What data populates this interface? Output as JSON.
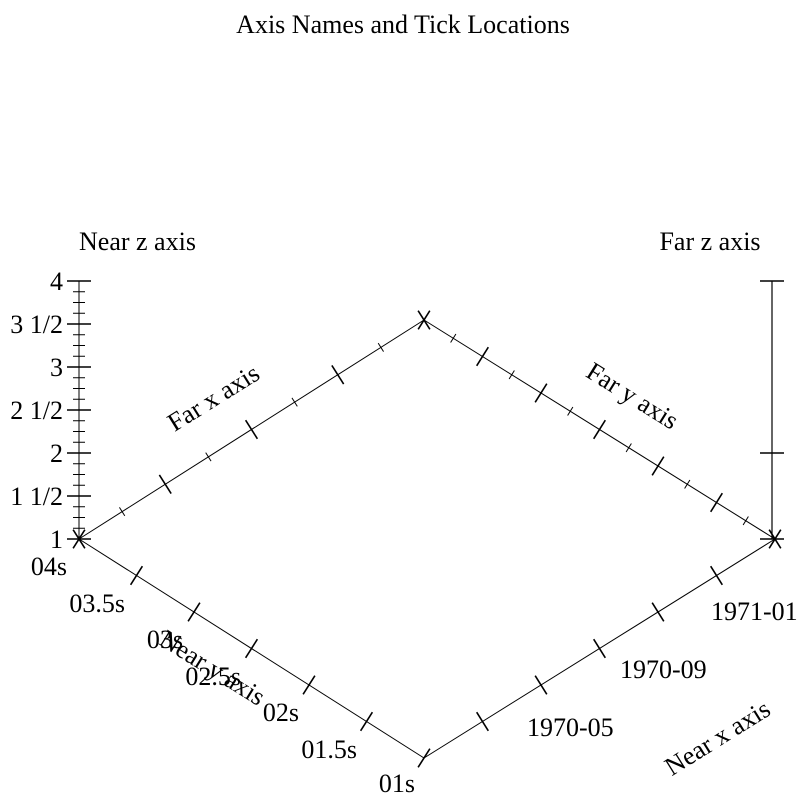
{
  "chart_data": {
    "type": "3d-axes",
    "title": "Axis Names and Tick Locations",
    "axes": {
      "near_x": {
        "label": "Near x axis",
        "scale": "date",
        "tick_labels": [
          "1970-05",
          "1970-09",
          "1971-01"
        ]
      },
      "far_x": {
        "label": "Far x axis"
      },
      "near_y": {
        "label": "Near y axis",
        "scale": "time-seconds",
        "tick_labels": [
          "01s",
          "01.5s",
          "02s",
          "02.5s",
          "03s",
          "03.5s",
          "04s"
        ]
      },
      "far_y": {
        "label": "Far y axis"
      },
      "near_z": {
        "label": "Near z axis",
        "range": [
          1,
          4
        ],
        "tick_labels": [
          "1",
          "1 1/2",
          "2",
          "2 1/2",
          "3",
          "3 1/2",
          "4"
        ]
      },
      "far_z": {
        "label": "Far z axis"
      }
    }
  }
}
